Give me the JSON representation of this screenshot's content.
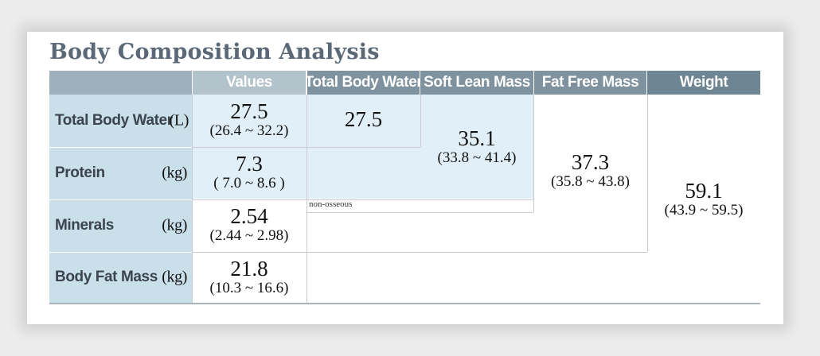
{
  "title": "Body Composition Analysis",
  "headers": {
    "values": "Values",
    "total_body_water": "Total Body Water",
    "soft_lean_mass": "Soft Lean Mass",
    "fat_free_mass": "Fat Free Mass",
    "weight": "Weight"
  },
  "rows": {
    "tbw": {
      "label": "Total Body Water",
      "unit": "(L)",
      "value": "27.5",
      "range": "(26.4 ~ 32.2)"
    },
    "protein": {
      "label": "Protein",
      "unit": "(kg)",
      "value": "7.3",
      "range": "( 7.0 ~ 8.6 )"
    },
    "minerals": {
      "label": "Minerals",
      "unit": "(kg)",
      "value": "2.54",
      "range": "(2.44 ~ 2.98)"
    },
    "bfm": {
      "label": "Body Fat Mass",
      "unit": "(kg)",
      "value": "21.8",
      "range": "(10.3 ~ 16.6)"
    }
  },
  "summary": {
    "tbw_value": "27.5",
    "slm_value": "35.1",
    "slm_range": "(33.8 ~ 41.4)",
    "ffm_value": "37.3",
    "ffm_range": "(35.8 ~ 43.8)",
    "weight_value": "59.1",
    "weight_range": "(43.9 ~ 59.5)"
  },
  "note": "non-osseous",
  "colors": {
    "header_dark": "#6e8593",
    "header_mid": "#7e939f",
    "header_light": "#b3c3cc",
    "header_blank": "#9eb0bb",
    "label_bg": "#c9dfe9",
    "highlight_bg": "#e1f0f8",
    "title": "#5b6877"
  }
}
